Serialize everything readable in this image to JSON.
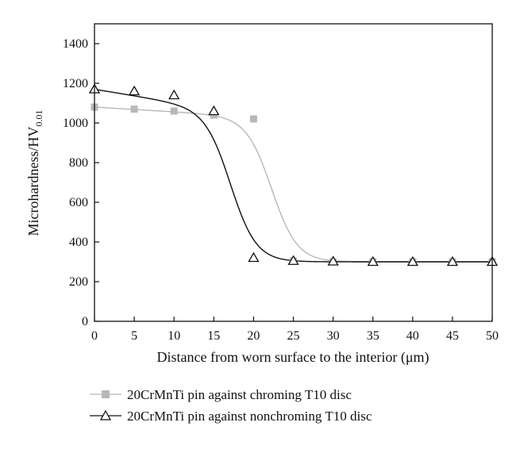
{
  "chart_data": {
    "type": "scatter",
    "title": "",
    "xlabel": "Distance from worn surface to the interior (μm)",
    "ylabel_main": "Microhardness/HV",
    "ylabel_sub": "0.01",
    "xlim": [
      0,
      50
    ],
    "ylim": [
      0,
      1500
    ],
    "xticks": [
      0,
      5,
      10,
      15,
      20,
      25,
      30,
      35,
      40,
      45,
      50
    ],
    "yticks": [
      0,
      200,
      400,
      600,
      800,
      1000,
      1200,
      1400
    ],
    "grid": false,
    "legend_position": "bottom",
    "series": [
      {
        "name": "20CrMnTi pin against chroming T10 disc",
        "marker": "square",
        "color": "#b8b8b8",
        "fit": "sigmoid",
        "x": [
          0,
          5,
          10,
          15,
          20,
          25,
          30,
          35,
          40,
          45,
          50
        ],
        "y": [
          1080,
          1070,
          1060,
          1040,
          1020,
          305,
          300,
          300,
          300,
          300,
          300
        ]
      },
      {
        "name": "20CrMnTi pin against nonchroming T10 disc",
        "marker": "triangle-open",
        "color": "#111111",
        "fit": "sigmoid",
        "x": [
          0,
          5,
          10,
          15,
          20,
          25,
          30,
          35,
          40,
          45,
          50
        ],
        "y": [
          1170,
          1160,
          1140,
          1060,
          320,
          305,
          302,
          300,
          300,
          300,
          300
        ]
      }
    ]
  }
}
